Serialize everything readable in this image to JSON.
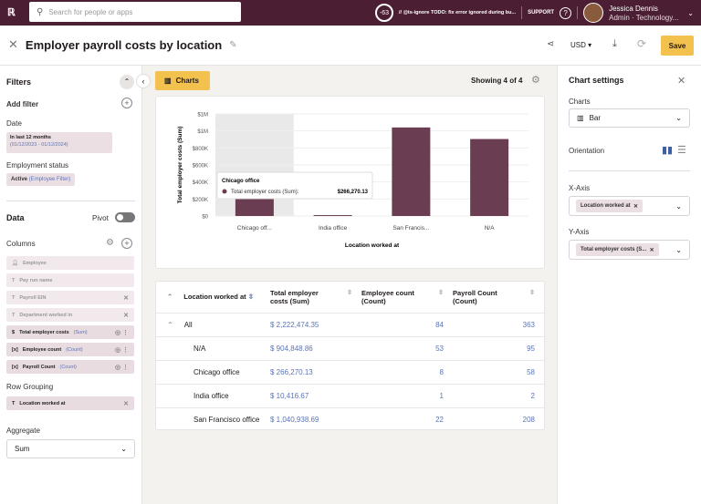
{
  "topbar": {
    "search_placeholder": "Search for people or apps",
    "badge": "-63",
    "notice": "// @ts-ignore TODO: fix error ignored during bu...",
    "support": "SUPPORT",
    "user_name": "Jessica Dennis",
    "user_role": "Admin · Technology..."
  },
  "header": {
    "title": "Employer payroll costs by location",
    "currency": "USD",
    "save": "Save"
  },
  "filters": {
    "title": "Filters",
    "add_filter": "Add filter",
    "date_label": "Date",
    "date_value": "In last 12 months",
    "date_range": "(01/12/2023 - 01/12/2024)",
    "status_label": "Employment status",
    "status_value": "Active",
    "status_qualifier": "(Employee Filter)"
  },
  "data": {
    "title": "Data",
    "pivot": "Pivot",
    "pivot_on": false,
    "columns_label": "Columns",
    "columns": [
      {
        "icon": "person",
        "label": "Employee",
        "agg": ""
      },
      {
        "icon": "T",
        "label": "Pay run name",
        "agg": ""
      },
      {
        "icon": "T",
        "label": "Payroll EIN",
        "agg": ""
      },
      {
        "icon": "T",
        "label": "Department worked in",
        "agg": ""
      },
      {
        "icon": "$",
        "label": "Total employer costs",
        "agg": "(Sum)"
      },
      {
        "icon": "[x]",
        "label": "Employee count",
        "agg": "(Count)"
      },
      {
        "icon": "[x]",
        "label": "Payroll Count",
        "agg": "(Count)"
      }
    ],
    "row_grouping_label": "Row Grouping",
    "row_grouping": "Location worked at",
    "aggregate_label": "Aggregate",
    "aggregate": "Sum"
  },
  "main": {
    "charts_tab": "Charts",
    "showing": "Showing 4 of 4"
  },
  "chart_data": {
    "type": "bar",
    "categories": [
      "Chicago off...",
      "India office",
      "San Francis...",
      "N/A"
    ],
    "values": [
      266270.13,
      10416.67,
      1040938.69,
      904848.86
    ],
    "xlabel": "Location worked at",
    "ylabel": "Total employer costs (Sum)",
    "ylim": [
      0,
      1200000
    ],
    "yticks": [
      "$0",
      "$200K",
      "$400K",
      "$600K",
      "$800K",
      "$1M",
      "$1M"
    ],
    "color": "#6b3d52",
    "grid": true,
    "tooltip": {
      "title": "Chicago office",
      "series": "Total employer costs (Sum):",
      "value": "$266,270.13"
    }
  },
  "table": {
    "headers": [
      "Location worked at",
      "Total employer costs (Sum)",
      "Employee count (Count)",
      "Payroll Count (Count)"
    ],
    "rows": [
      {
        "name": "All",
        "cost": "$ 2,222,474.35",
        "emp": "84",
        "pay": "363"
      },
      {
        "name": "N/A",
        "cost": "$ 904,848.86",
        "emp": "53",
        "pay": "95"
      },
      {
        "name": "Chicago office",
        "cost": "$ 266,270.13",
        "emp": "8",
        "pay": "58"
      },
      {
        "name": "India office",
        "cost": "$ 10,416.67",
        "emp": "1",
        "pay": "2"
      },
      {
        "name": "San Francisco office",
        "cost": "$ 1,040,938.69",
        "emp": "22",
        "pay": "208"
      }
    ]
  },
  "settings": {
    "title": "Chart settings",
    "charts_label": "Charts",
    "chart_type": "Bar",
    "orientation_label": "Orientation",
    "xaxis_label": "X-Axis",
    "xaxis_value": "Location worked at",
    "yaxis_label": "Y-Axis",
    "yaxis_value": "Total employer costs (S..."
  }
}
